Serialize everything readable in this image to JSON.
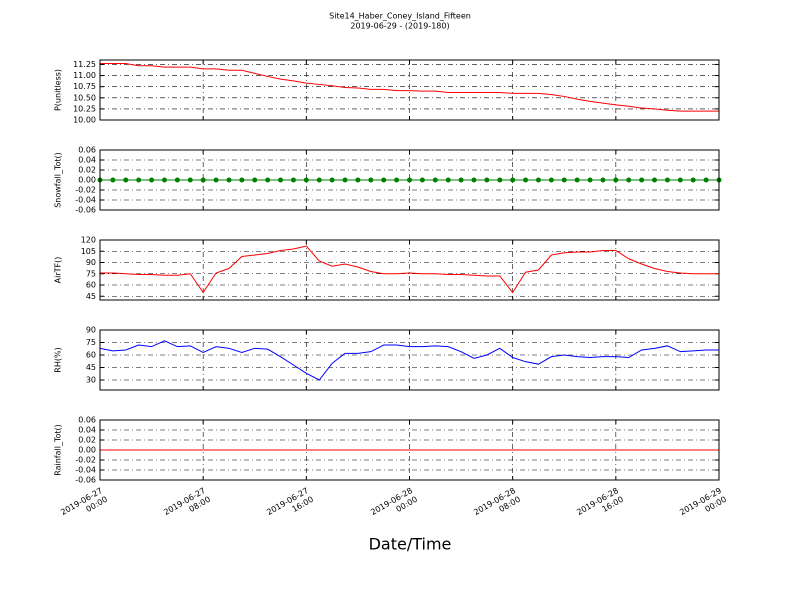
{
  "chart_data": [
    {
      "type": "line",
      "title": "Site14_Haber_Coney_Island_Fifteen",
      "subtitle": "2019-06-29 - (2019-180)",
      "ylabel": "P(unitless)",
      "xlim": [
        "2019-06-27 00:00",
        "2019-06-29 00:00"
      ],
      "xticks": [
        "2019-06-27 00:00",
        "2019-06-27 08:00",
        "2019-06-27 16:00",
        "2019-06-28 00:00",
        "2019-06-28 08:00",
        "2019-06-28 16:00",
        "2019-06-29 00:00"
      ],
      "ylim": [
        10.0,
        11.35
      ],
      "yticks": [
        {
          "value": 10.0,
          "label": "10.00"
        },
        {
          "value": 10.25,
          "label": "10.25"
        },
        {
          "value": 10.5,
          "label": "10.50"
        },
        {
          "value": 10.75,
          "label": "10.75"
        },
        {
          "value": 11.0,
          "label": "11.00"
        },
        {
          "value": 11.25,
          "label": "11.25"
        }
      ],
      "grid": true,
      "color": "#ff0000",
      "x": [
        "2019-06-27 00:00",
        "2019-06-27 01:00",
        "2019-06-27 02:00",
        "2019-06-27 03:00",
        "2019-06-27 04:00",
        "2019-06-27 05:00",
        "2019-06-27 06:00",
        "2019-06-27 07:00",
        "2019-06-27 08:00",
        "2019-06-27 09:00",
        "2019-06-27 10:00",
        "2019-06-27 11:00",
        "2019-06-27 12:00",
        "2019-06-27 13:00",
        "2019-06-27 14:00",
        "2019-06-27 15:00",
        "2019-06-27 16:00",
        "2019-06-27 17:00",
        "2019-06-27 18:00",
        "2019-06-27 19:00",
        "2019-06-27 20:00",
        "2019-06-27 21:00",
        "2019-06-27 22:00",
        "2019-06-27 23:00",
        "2019-06-28 00:00",
        "2019-06-28 01:00",
        "2019-06-28 02:00",
        "2019-06-28 03:00",
        "2019-06-28 04:00",
        "2019-06-28 05:00",
        "2019-06-28 06:00",
        "2019-06-28 07:00",
        "2019-06-28 08:00",
        "2019-06-28 09:00",
        "2019-06-28 10:00",
        "2019-06-28 11:00",
        "2019-06-28 12:00",
        "2019-06-28 13:00",
        "2019-06-28 14:00",
        "2019-06-28 15:00",
        "2019-06-28 16:00",
        "2019-06-28 17:00",
        "2019-06-28 18:00",
        "2019-06-28 19:00",
        "2019-06-28 20:00",
        "2019-06-28 21:00",
        "2019-06-28 22:00",
        "2019-06-28 23:00",
        "2019-06-29 00:00"
      ],
      "values": [
        11.27,
        11.27,
        11.27,
        11.22,
        11.22,
        11.19,
        11.19,
        11.19,
        11.15,
        11.15,
        11.12,
        11.12,
        11.05,
        10.98,
        10.92,
        10.88,
        10.83,
        10.8,
        10.77,
        10.73,
        10.72,
        10.69,
        10.69,
        10.66,
        10.66,
        10.65,
        10.65,
        10.62,
        10.62,
        10.62,
        10.62,
        10.62,
        10.6,
        10.6,
        10.6,
        10.57,
        10.53,
        10.47,
        10.42,
        10.38,
        10.34,
        10.31,
        10.27,
        10.25,
        10.22,
        10.2,
        10.2,
        10.2,
        10.2
      ]
    },
    {
      "type": "line",
      "ylabel": "Snowfall_Tot()",
      "markers": true,
      "xlim": [
        "2019-06-27 00:00",
        "2019-06-29 00:00"
      ],
      "xticks": [
        "2019-06-27 00:00",
        "2019-06-27 08:00",
        "2019-06-27 16:00",
        "2019-06-28 00:00",
        "2019-06-28 08:00",
        "2019-06-28 16:00",
        "2019-06-29 00:00"
      ],
      "ylim": [
        -0.06,
        0.06
      ],
      "yticks": [
        -0.06,
        -0.04,
        -0.02,
        {
          "value": 0,
          "label": "0.00"
        },
        0.02,
        0.04,
        0.06
      ],
      "grid": true,
      "color": "#008000",
      "x": [
        "2019-06-27 00:00",
        "2019-06-27 01:00",
        "2019-06-27 02:00",
        "2019-06-27 03:00",
        "2019-06-27 04:00",
        "2019-06-27 05:00",
        "2019-06-27 06:00",
        "2019-06-27 07:00",
        "2019-06-27 08:00",
        "2019-06-27 09:00",
        "2019-06-27 10:00",
        "2019-06-27 11:00",
        "2019-06-27 12:00",
        "2019-06-27 13:00",
        "2019-06-27 14:00",
        "2019-06-27 15:00",
        "2019-06-27 16:00",
        "2019-06-27 17:00",
        "2019-06-27 18:00",
        "2019-06-27 19:00",
        "2019-06-27 20:00",
        "2019-06-27 21:00",
        "2019-06-27 22:00",
        "2019-06-27 23:00",
        "2019-06-28 00:00",
        "2019-06-28 01:00",
        "2019-06-28 02:00",
        "2019-06-28 03:00",
        "2019-06-28 04:00",
        "2019-06-28 05:00",
        "2019-06-28 06:00",
        "2019-06-28 07:00",
        "2019-06-28 08:00",
        "2019-06-28 09:00",
        "2019-06-28 10:00",
        "2019-06-28 11:00",
        "2019-06-28 12:00",
        "2019-06-28 13:00",
        "2019-06-28 14:00",
        "2019-06-28 15:00",
        "2019-06-28 16:00",
        "2019-06-28 17:00",
        "2019-06-28 18:00",
        "2019-06-28 19:00",
        "2019-06-28 20:00",
        "2019-06-28 21:00",
        "2019-06-28 22:00",
        "2019-06-28 23:00",
        "2019-06-29 00:00"
      ],
      "values": [
        0,
        0,
        0,
        0,
        0,
        0,
        0,
        0,
        0,
        0,
        0,
        0,
        0,
        0,
        0,
        0,
        0,
        0,
        0,
        0,
        0,
        0,
        0,
        0,
        0,
        0,
        0,
        0,
        0,
        0,
        0,
        0,
        0,
        0,
        0,
        0,
        0,
        0,
        0,
        0,
        0,
        0,
        0,
        0,
        0,
        0,
        0,
        0,
        0
      ]
    },
    {
      "type": "line",
      "ylabel": "AirTF()",
      "xlim": [
        "2019-06-27 00:00",
        "2019-06-29 00:00"
      ],
      "xticks": [
        "2019-06-27 00:00",
        "2019-06-27 08:00",
        "2019-06-27 16:00",
        "2019-06-28 00:00",
        "2019-06-28 08:00",
        "2019-06-28 16:00",
        "2019-06-29 00:00"
      ],
      "ylim": [
        40,
        120
      ],
      "yticks": [
        45,
        60,
        75,
        90,
        105,
        120
      ],
      "grid": true,
      "color": "#ff0000",
      "x": [
        "2019-06-27 00:00",
        "2019-06-27 01:00",
        "2019-06-27 02:00",
        "2019-06-27 03:00",
        "2019-06-27 04:00",
        "2019-06-27 05:00",
        "2019-06-27 06:00",
        "2019-06-27 07:00",
        "2019-06-27 08:00",
        "2019-06-27 09:00",
        "2019-06-27 10:00",
        "2019-06-27 11:00",
        "2019-06-27 12:00",
        "2019-06-27 13:00",
        "2019-06-27 14:00",
        "2019-06-27 15:00",
        "2019-06-27 16:00",
        "2019-06-27 17:00",
        "2019-06-27 18:00",
        "2019-06-27 19:00",
        "2019-06-27 20:00",
        "2019-06-27 21:00",
        "2019-06-27 22:00",
        "2019-06-27 23:00",
        "2019-06-28 00:00",
        "2019-06-28 01:00",
        "2019-06-28 02:00",
        "2019-06-28 03:00",
        "2019-06-28 04:00",
        "2019-06-28 05:00",
        "2019-06-28 06:00",
        "2019-06-28 07:00",
        "2019-06-28 08:00",
        "2019-06-28 09:00",
        "2019-06-28 10:00",
        "2019-06-28 11:00",
        "2019-06-28 12:00",
        "2019-06-28 13:00",
        "2019-06-28 14:00",
        "2019-06-28 15:00",
        "2019-06-28 16:00",
        "2019-06-28 17:00",
        "2019-06-28 18:00",
        "2019-06-28 19:00",
        "2019-06-28 20:00",
        "2019-06-28 21:00",
        "2019-06-28 22:00",
        "2019-06-28 23:00",
        "2019-06-29 00:00"
      ],
      "values": [
        76,
        76,
        75,
        74,
        74,
        73,
        73,
        75,
        50,
        76,
        82,
        98,
        100,
        102,
        106,
        108,
        112,
        92,
        85,
        88,
        84,
        78,
        75,
        75,
        76,
        75,
        75,
        74,
        74,
        73,
        72,
        72,
        50,
        77,
        80,
        100,
        103,
        104,
        104,
        106,
        106,
        95,
        88,
        82,
        78,
        76,
        75,
        75,
        75
      ]
    },
    {
      "type": "line",
      "ylabel": "RH(%)",
      "xlim": [
        "2019-06-27 00:00",
        "2019-06-29 00:00"
      ],
      "xticks": [
        "2019-06-27 00:00",
        "2019-06-27 08:00",
        "2019-06-27 16:00",
        "2019-06-28 00:00",
        "2019-06-28 08:00",
        "2019-06-28 16:00",
        "2019-06-29 00:00"
      ],
      "ylim": [
        18,
        90
      ],
      "yticks": [
        30,
        45,
        60,
        75,
        90
      ],
      "grid": true,
      "color": "#0000ff",
      "x": [
        "2019-06-27 00:00",
        "2019-06-27 01:00",
        "2019-06-27 02:00",
        "2019-06-27 03:00",
        "2019-06-27 04:00",
        "2019-06-27 05:00",
        "2019-06-27 06:00",
        "2019-06-27 07:00",
        "2019-06-27 08:00",
        "2019-06-27 09:00",
        "2019-06-27 10:00",
        "2019-06-27 11:00",
        "2019-06-27 12:00",
        "2019-06-27 13:00",
        "2019-06-27 14:00",
        "2019-06-27 15:00",
        "2019-06-27 16:00",
        "2019-06-27 17:00",
        "2019-06-27 18:00",
        "2019-06-27 19:00",
        "2019-06-27 20:00",
        "2019-06-27 21:00",
        "2019-06-27 22:00",
        "2019-06-27 23:00",
        "2019-06-28 00:00",
        "2019-06-28 01:00",
        "2019-06-28 02:00",
        "2019-06-28 03:00",
        "2019-06-28 04:00",
        "2019-06-28 05:00",
        "2019-06-28 06:00",
        "2019-06-28 07:00",
        "2019-06-28 08:00",
        "2019-06-28 09:00",
        "2019-06-28 10:00",
        "2019-06-28 11:00",
        "2019-06-28 12:00",
        "2019-06-28 13:00",
        "2019-06-28 14:00",
        "2019-06-28 15:00",
        "2019-06-28 16:00",
        "2019-06-28 17:00",
        "2019-06-28 18:00",
        "2019-06-28 19:00",
        "2019-06-28 20:00",
        "2019-06-28 21:00",
        "2019-06-28 22:00",
        "2019-06-28 23:00",
        "2019-06-29 00:00"
      ],
      "values": [
        68,
        65,
        66,
        72,
        70,
        77,
        70,
        71,
        63,
        70,
        68,
        63,
        68,
        67,
        58,
        48,
        38,
        30,
        50,
        62,
        62,
        64,
        72,
        72,
        70,
        70,
        71,
        70,
        64,
        56,
        60,
        68,
        57,
        52,
        49,
        58,
        60,
        58,
        57,
        58,
        58,
        57,
        66,
        68,
        71,
        64,
        65,
        66,
        66
      ]
    },
    {
      "type": "line",
      "ylabel": "Rainfall_Tot()",
      "xlabel": "Date/Time",
      "xlim": [
        "2019-06-27 00:00",
        "2019-06-29 00:00"
      ],
      "xticks": [
        {
          "value": "2019-06-27 00:00",
          "label": "2019-06-27\n00:00"
        },
        {
          "value": "2019-06-27 08:00",
          "label": "2019-06-27\n08:00"
        },
        {
          "value": "2019-06-27 16:00",
          "label": "2019-06-27\n16:00"
        },
        {
          "value": "2019-06-28 00:00",
          "label": "2019-06-28\n00:00"
        },
        {
          "value": "2019-06-28 08:00",
          "label": "2019-06-28\n08:00"
        },
        {
          "value": "2019-06-28 16:00",
          "label": "2019-06-28\n16:00"
        },
        {
          "value": "2019-06-29 00:00",
          "label": "2019-06-29\n00:00"
        }
      ],
      "ylim": [
        -0.06,
        0.06
      ],
      "yticks": [
        -0.06,
        -0.04,
        -0.02,
        {
          "value": 0,
          "label": "0.00"
        },
        0.02,
        0.04,
        0.06
      ],
      "grid": true,
      "color": "#ff0000",
      "x": [
        "2019-06-27 00:00",
        "2019-06-27 01:00",
        "2019-06-27 02:00",
        "2019-06-27 03:00",
        "2019-06-27 04:00",
        "2019-06-27 05:00",
        "2019-06-27 06:00",
        "2019-06-27 07:00",
        "2019-06-27 08:00",
        "2019-06-27 09:00",
        "2019-06-27 10:00",
        "2019-06-27 11:00",
        "2019-06-27 12:00",
        "2019-06-27 13:00",
        "2019-06-27 14:00",
        "2019-06-27 15:00",
        "2019-06-27 16:00",
        "2019-06-27 17:00",
        "2019-06-27 18:00",
        "2019-06-27 19:00",
        "2019-06-27 20:00",
        "2019-06-27 21:00",
        "2019-06-27 22:00",
        "2019-06-27 23:00",
        "2019-06-28 00:00",
        "2019-06-28 01:00",
        "2019-06-28 02:00",
        "2019-06-28 03:00",
        "2019-06-28 04:00",
        "2019-06-28 05:00",
        "2019-06-28 06:00",
        "2019-06-28 07:00",
        "2019-06-28 08:00",
        "2019-06-28 09:00",
        "2019-06-28 10:00",
        "2019-06-28 11:00",
        "2019-06-28 12:00",
        "2019-06-28 13:00",
        "2019-06-28 14:00",
        "2019-06-28 15:00",
        "2019-06-28 16:00",
        "2019-06-28 17:00",
        "2019-06-28 18:00",
        "2019-06-28 19:00",
        "2019-06-28 20:00",
        "2019-06-28 21:00",
        "2019-06-28 22:00",
        "2019-06-28 23:00",
        "2019-06-29 00:00"
      ],
      "values": [
        0,
        0,
        0,
        0,
        0,
        0,
        0,
        0,
        0,
        0,
        0,
        0,
        0,
        0,
        0,
        0,
        0,
        0,
        0,
        0,
        0,
        0,
        0,
        0,
        0,
        0,
        0,
        0,
        0,
        0,
        0,
        0,
        0,
        0,
        0,
        0,
        0,
        0,
        0,
        0,
        0,
        0,
        0,
        0,
        0,
        0,
        0,
        0,
        0
      ]
    }
  ]
}
